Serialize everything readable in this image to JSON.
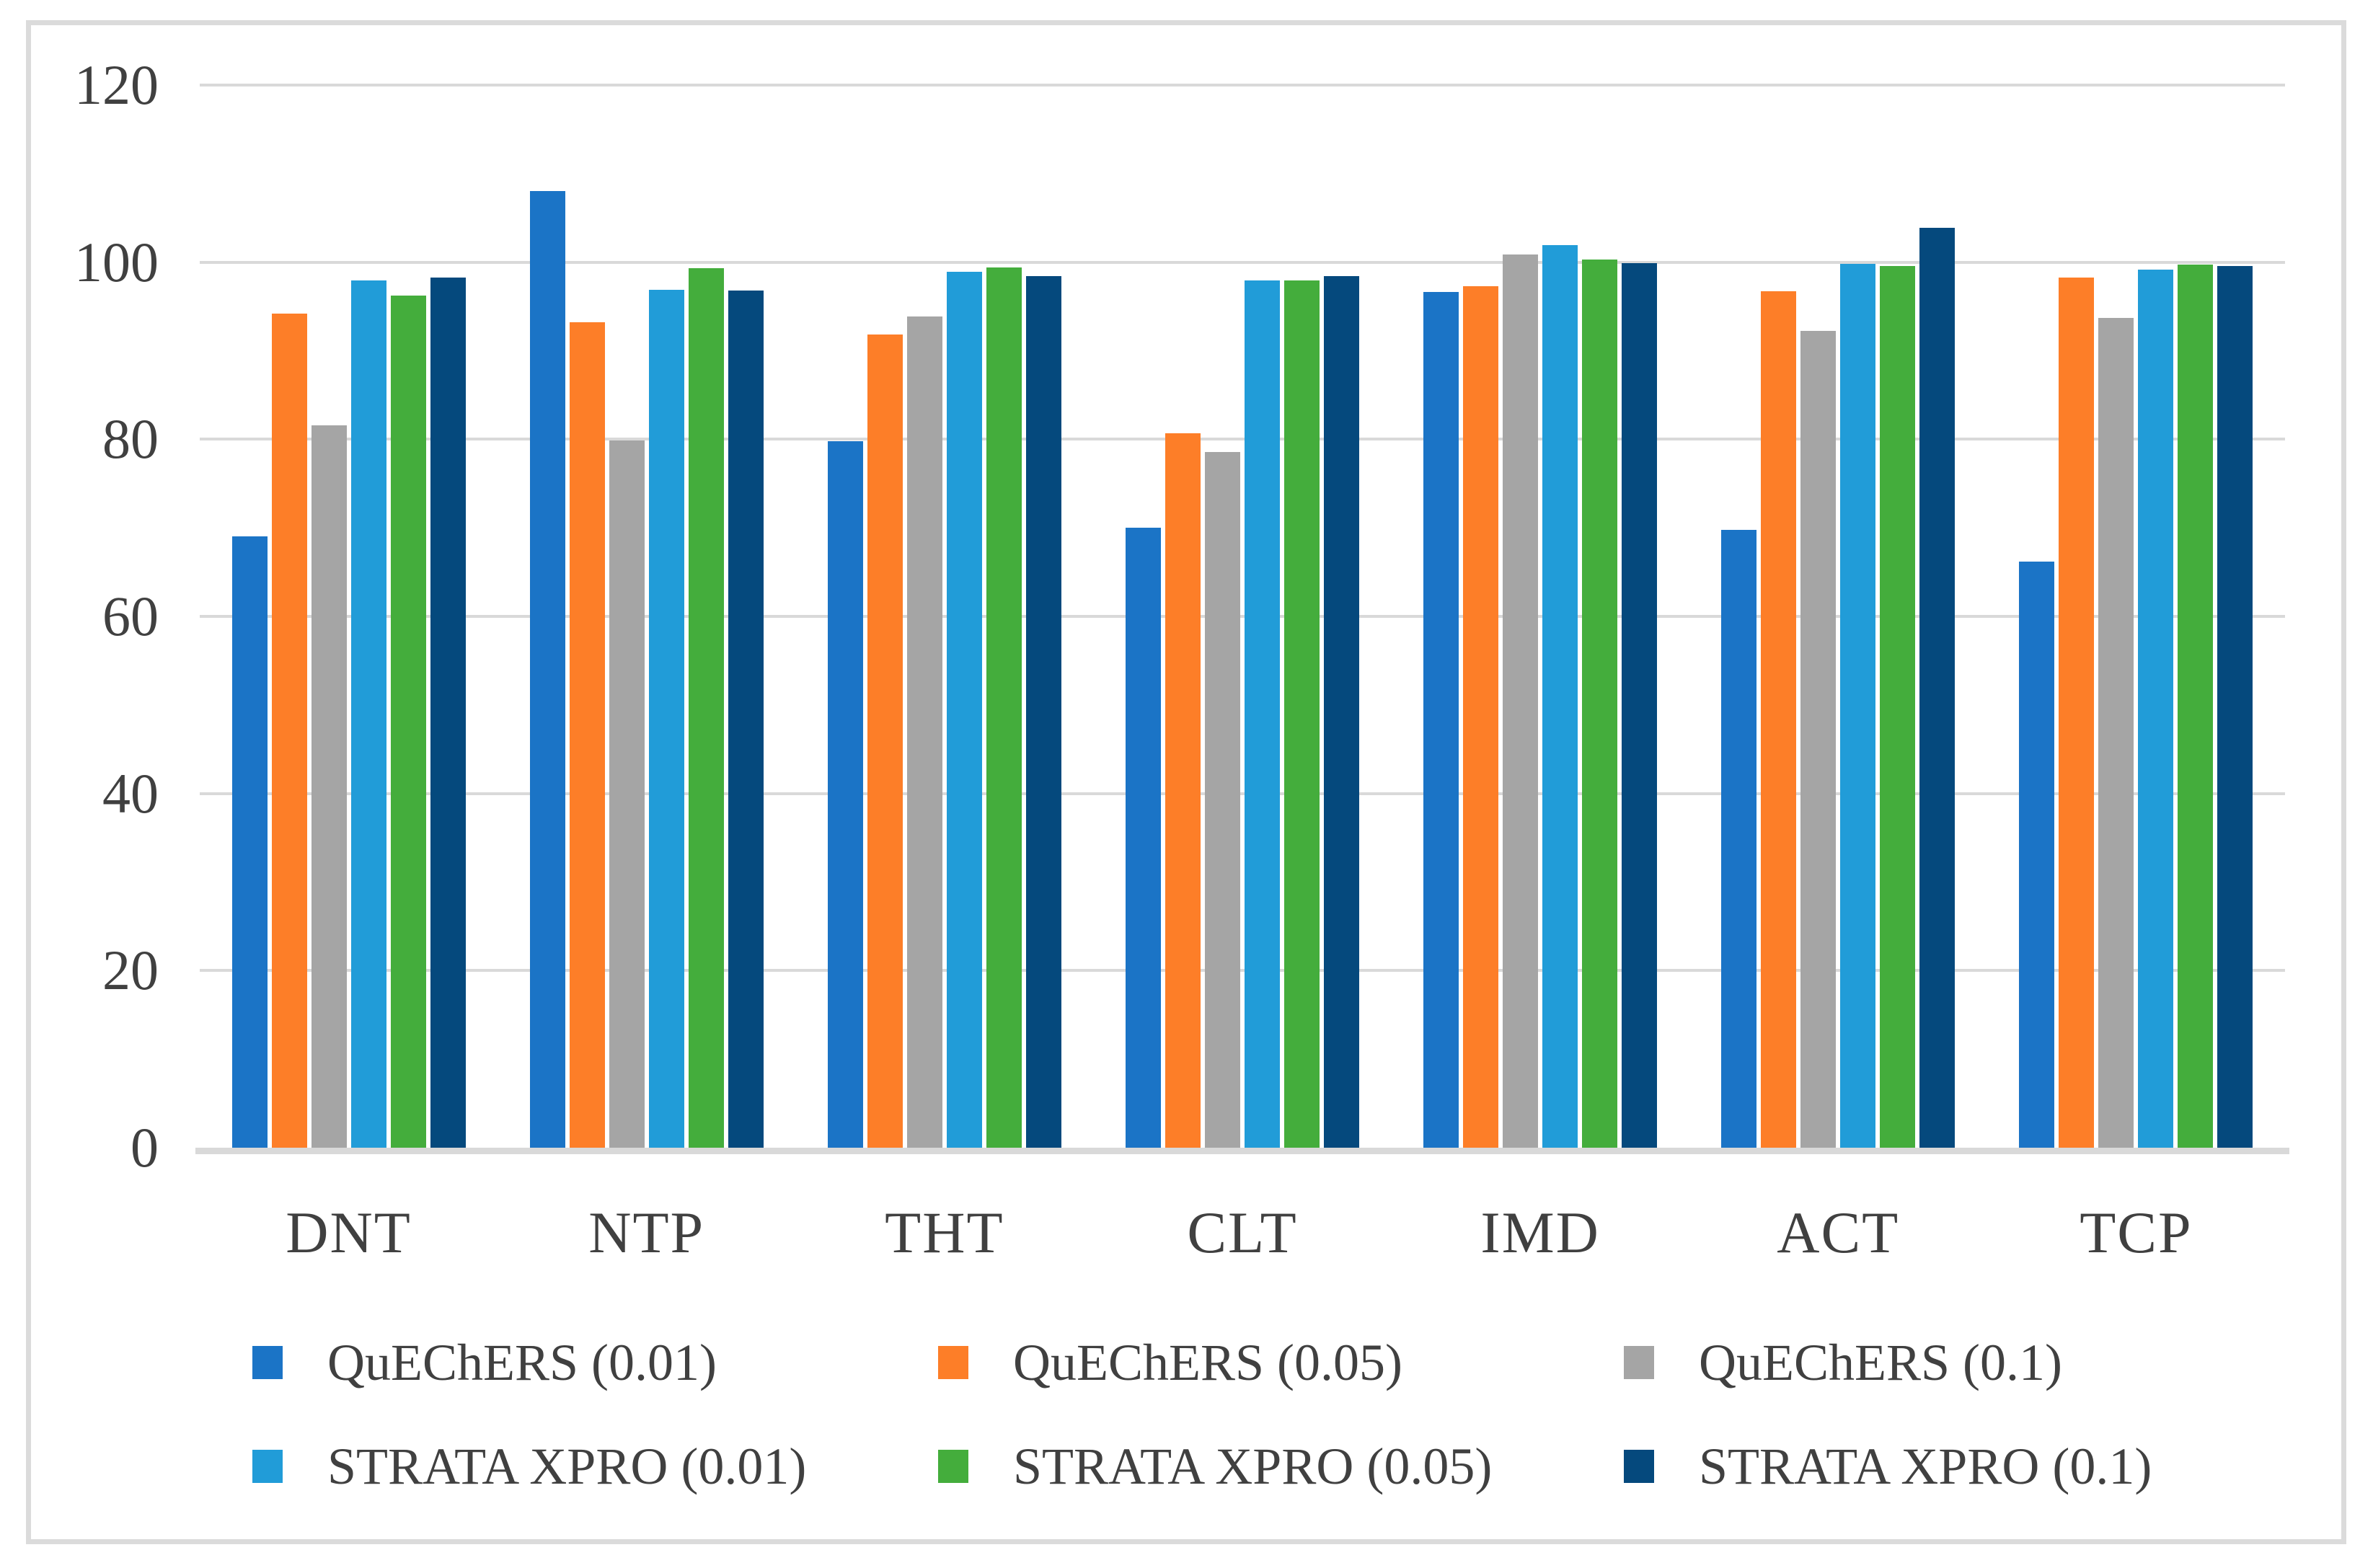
{
  "chart_data": {
    "type": "bar",
    "title": "",
    "xlabel": "",
    "ylabel": "",
    "categories": [
      "DNT",
      "NTP",
      "THT",
      "CLT",
      "IMD",
      "ACT",
      "TCP"
    ],
    "series": [
      {
        "name": "QuEChERS (0.01)",
        "color": "#1B74C6",
        "values": [
          69.0,
          108.0,
          79.8,
          70.0,
          96.6,
          69.8,
          66.2
        ]
      },
      {
        "name": "QuEChERS (0.05)",
        "color": "#FD7E28",
        "values": [
          94.2,
          93.2,
          91.8,
          80.7,
          97.3,
          96.7,
          98.3
        ]
      },
      {
        "name": "QuEChERS (0.1)",
        "color": "#A5A5A5",
        "values": [
          81.6,
          79.9,
          93.9,
          78.6,
          100.9,
          92.2,
          93.7
        ]
      },
      {
        "name": "STRATA XPRO (0.01)",
        "color": "#219CD8",
        "values": [
          97.9,
          96.9,
          98.9,
          97.9,
          101.9,
          99.8,
          99.2
        ]
      },
      {
        "name": "STRATA XPRO (0.05)",
        "color": "#44AD3C",
        "values": [
          96.2,
          99.3,
          99.4,
          97.9,
          100.3,
          99.6,
          99.7
        ]
      },
      {
        "name": "STRATA XPRO (0.1)",
        "color": "#05497D",
        "values": [
          98.3,
          96.8,
          98.4,
          98.4,
          99.9,
          103.9,
          99.6
        ]
      }
    ],
    "ylim": [
      0,
      120
    ],
    "yticks": [
      0,
      20,
      40,
      60,
      80,
      100,
      120
    ],
    "grid": true,
    "legend_position": "bottom"
  },
  "style": {
    "grid_color": "#D9D9D9",
    "axis_line_color": "#D9D9D9",
    "text_color": "#404040",
    "frame_border_color": "#DBDBDB",
    "background": "#FFFFFF"
  }
}
